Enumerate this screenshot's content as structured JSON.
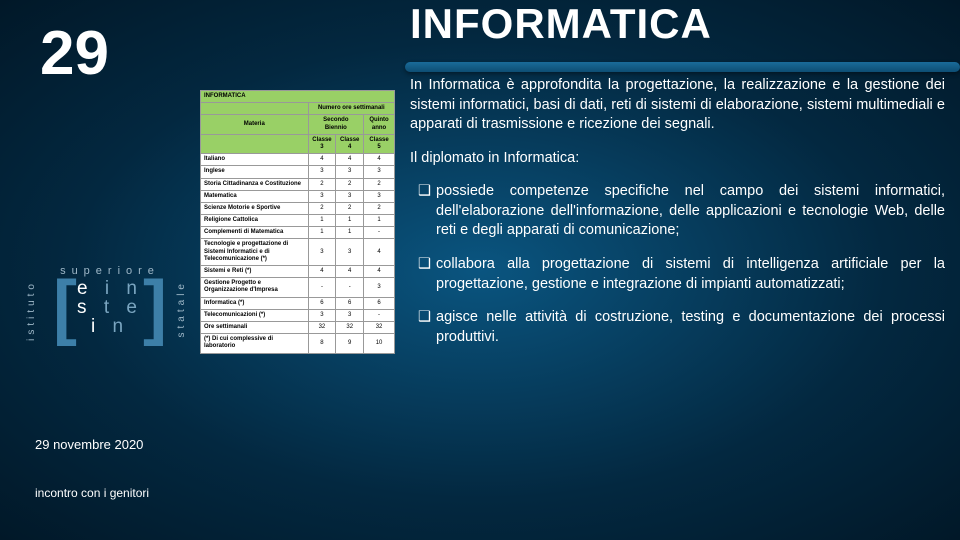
{
  "slideNumber": "29",
  "title": "INFORMATICA",
  "intro": "In Informatica è approfondita la progettazione, la realizzazione e la gestione dei sistemi informatici, basi di dati, reti di sistemi di elaborazione, sistemi multimediali e apparati di trasmissione e ricezione dei segnali.",
  "subheading": "Il diplomato in Informatica:",
  "bullets": [
    "possiede competenze specifiche nel campo dei sistemi informatici, dell'elaborazione dell'informazione, delle applicazioni e tecnologie Web, delle reti e degli apparati di comunicazione;",
    "collabora alla progettazione di sistemi di intelligenza artificiale per la progettazione, gestione e integrazione di impianti automatizzati;",
    "agisce nelle attività di costruzione, testing e documentazione dei processi produttivi."
  ],
  "table": {
    "headerTitle": "INFORMATICA",
    "headerHours": "Numero ore settimanali",
    "colMateria": "Materia",
    "colBiennio": "Secondo Biennio",
    "colQuinto": "Quinto anno",
    "classes": [
      "Classe 3",
      "Classe 4",
      "Classe 5"
    ],
    "rows": [
      {
        "s": "Italiano",
        "v": [
          "4",
          "4",
          "4"
        ]
      },
      {
        "s": "Inglese",
        "v": [
          "3",
          "3",
          "3"
        ]
      },
      {
        "s": "Storia Cittadinanza e Costituzione",
        "v": [
          "2",
          "2",
          "2"
        ]
      },
      {
        "s": "Matematica",
        "v": [
          "3",
          "3",
          "3"
        ]
      },
      {
        "s": "Scienze Motorie e Sportive",
        "v": [
          "2",
          "2",
          "2"
        ]
      },
      {
        "s": "Religione Cattolica",
        "v": [
          "1",
          "1",
          "1"
        ]
      },
      {
        "s": "Complementi di Matematica",
        "v": [
          "1",
          "1",
          "-"
        ]
      },
      {
        "s": "Tecnologie e progettazione di Sistemi Informatici e di Telecomunicazione (*)",
        "v": [
          "3",
          "3",
          "4"
        ]
      },
      {
        "s": "Sistemi e Reti (*)",
        "v": [
          "4",
          "4",
          "4"
        ]
      },
      {
        "s": "Gestione Progetto e Organizzazione d'Impresa",
        "v": [
          "-",
          "-",
          "3"
        ]
      },
      {
        "s": "Informatica (*)",
        "v": [
          "6",
          "6",
          "6"
        ]
      },
      {
        "s": "Telecomunicazioni (*)",
        "v": [
          "3",
          "3",
          "-"
        ]
      },
      {
        "s": "Ore settimanali",
        "v": [
          "32",
          "32",
          "32"
        ]
      },
      {
        "s": "(*) Di cui complessive di laboratorio",
        "v": [
          "8",
          "9",
          "10"
        ]
      }
    ]
  },
  "logo": {
    "top": "superiore",
    "left": "istituto",
    "right": "statale",
    "l1a": "e",
    "l1b": "i",
    "l1c": "n",
    "l2a": "s",
    "l2b": "t",
    "l2c": "e",
    "l3a": "i",
    "l3b": "n"
  },
  "date": "29 novembre 2020",
  "footer": "incontro con i genitori"
}
